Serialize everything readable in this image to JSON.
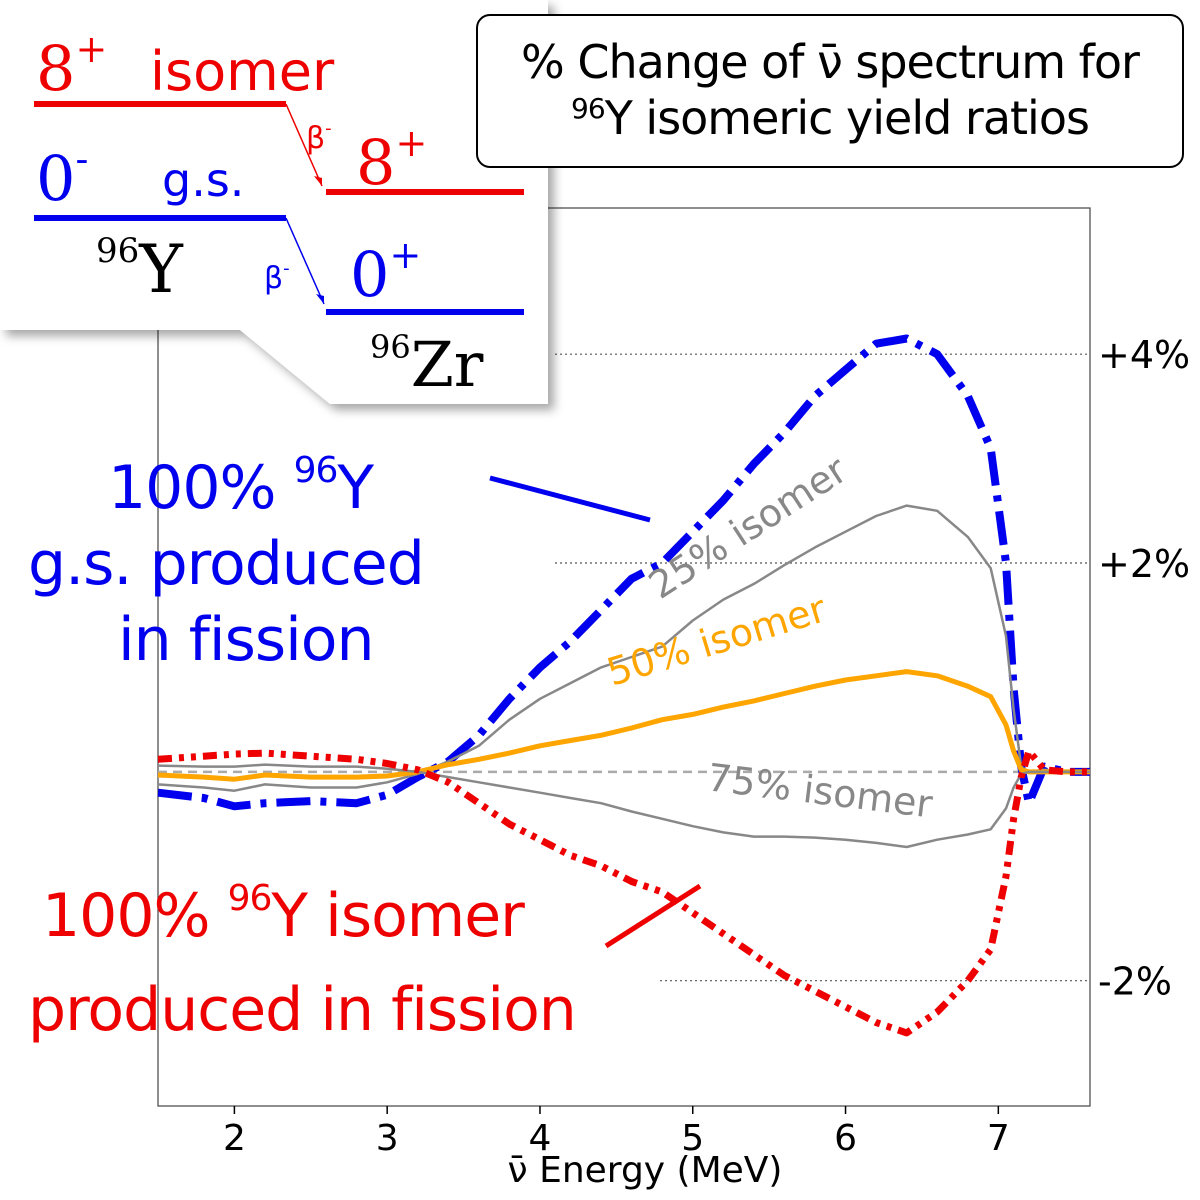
{
  "chart_data": {
    "type": "line",
    "title_line1": "% Change of ν̄ spectrum for",
    "title_line2_sup": "96",
    "title_line2": "Y isomeric yield ratios",
    "xlabel": "ν̄ Energy (MeV)",
    "xlim": [
      1.5,
      7.6
    ],
    "ylim": [
      -3.2,
      5.4
    ],
    "xticks": [
      "2",
      "3",
      "4",
      "5",
      "6",
      "7"
    ],
    "right_labels": [
      {
        "text": "+4%",
        "y": 4
      },
      {
        "text": "+2%",
        "y": 2
      },
      {
        "text": "-2%",
        "y": -2
      }
    ],
    "series": [
      {
        "name": "100% 96Y g.s. produced in fission",
        "color": "#0000ee",
        "style": "dashdot",
        "x": [
          1.5,
          1.8,
          2.0,
          2.2,
          2.5,
          2.8,
          3.0,
          3.2,
          3.4,
          3.6,
          3.8,
          4.0,
          4.2,
          4.4,
          4.6,
          4.8,
          5.0,
          5.2,
          5.4,
          5.6,
          5.8,
          6.0,
          6.2,
          6.4,
          6.6,
          6.8,
          6.95,
          7.05,
          7.1,
          7.15,
          7.2,
          7.3,
          7.45,
          7.6
        ],
        "y": [
          -0.2,
          -0.25,
          -0.33,
          -0.3,
          -0.28,
          -0.3,
          -0.22,
          -0.05,
          0.1,
          0.35,
          0.7,
          1.0,
          1.25,
          1.55,
          1.85,
          2.0,
          2.3,
          2.6,
          2.95,
          3.25,
          3.6,
          3.85,
          4.1,
          4.15,
          4.0,
          3.6,
          3.1,
          2.0,
          0.8,
          0.05,
          -0.3,
          0.05,
          0.0,
          0.0
        ]
      },
      {
        "name": "25% isomer",
        "color": "#888888",
        "style": "solid",
        "x": [
          1.5,
          1.8,
          2.0,
          2.2,
          2.5,
          2.8,
          3.0,
          3.2,
          3.4,
          3.6,
          3.8,
          4.0,
          4.2,
          4.4,
          4.6,
          4.8,
          5.0,
          5.2,
          5.4,
          5.6,
          5.8,
          6.0,
          6.2,
          6.4,
          6.6,
          6.8,
          6.95,
          7.05,
          7.1,
          7.15,
          7.2,
          7.3,
          7.45,
          7.6
        ],
        "y": [
          -0.12,
          -0.15,
          -0.18,
          -0.12,
          -0.15,
          -0.15,
          -0.1,
          -0.02,
          0.1,
          0.25,
          0.5,
          0.7,
          0.85,
          1.0,
          1.1,
          1.2,
          1.45,
          1.65,
          1.8,
          1.98,
          2.15,
          2.3,
          2.45,
          2.55,
          2.5,
          2.25,
          1.95,
          1.3,
          0.6,
          0.05,
          0.0,
          0.02,
          0.0,
          0.0
        ]
      },
      {
        "name": "50% isomer",
        "color": "#ffa500",
        "style": "solid",
        "x": [
          1.5,
          1.8,
          2.0,
          2.2,
          2.5,
          2.8,
          3.0,
          3.2,
          3.4,
          3.6,
          3.8,
          4.0,
          4.2,
          4.4,
          4.6,
          4.8,
          5.0,
          5.2,
          5.4,
          5.6,
          5.8,
          6.0,
          6.2,
          6.4,
          6.6,
          6.8,
          6.95,
          7.05,
          7.1,
          7.15,
          7.2,
          7.3,
          7.45,
          7.6
        ],
        "y": [
          -0.03,
          -0.05,
          -0.07,
          -0.03,
          -0.05,
          -0.05,
          -0.04,
          0.0,
          0.07,
          0.12,
          0.18,
          0.25,
          0.3,
          0.35,
          0.42,
          0.5,
          0.55,
          0.62,
          0.68,
          0.75,
          0.82,
          0.88,
          0.92,
          0.96,
          0.92,
          0.82,
          0.72,
          0.45,
          0.2,
          0.02,
          0.0,
          0.0,
          0.0,
          0.0
        ]
      },
      {
        "name": "75% isomer",
        "color": "#888888",
        "style": "solid",
        "x": [
          1.5,
          1.8,
          2.0,
          2.2,
          2.5,
          2.8,
          3.0,
          3.2,
          3.4,
          3.6,
          3.8,
          4.0,
          4.2,
          4.4,
          4.6,
          4.8,
          5.0,
          5.2,
          5.4,
          5.6,
          5.8,
          6.0,
          6.2,
          6.4,
          6.6,
          6.8,
          6.95,
          7.05,
          7.1,
          7.15,
          7.2,
          7.3,
          7.45,
          7.6
        ],
        "y": [
          0.06,
          0.05,
          0.05,
          0.07,
          0.05,
          0.05,
          0.03,
          0.0,
          -0.05,
          -0.1,
          -0.15,
          -0.2,
          -0.25,
          -0.3,
          -0.38,
          -0.45,
          -0.52,
          -0.58,
          -0.62,
          -0.62,
          -0.63,
          -0.65,
          -0.68,
          -0.72,
          -0.65,
          -0.6,
          -0.55,
          -0.35,
          -0.15,
          -0.02,
          0.0,
          0.0,
          0.0,
          0.0
        ]
      },
      {
        "name": "100% 96Y isomer produced in fission",
        "color": "#ee0000",
        "style": "dashdotdot",
        "x": [
          1.5,
          1.8,
          2.0,
          2.2,
          2.5,
          2.8,
          3.0,
          3.2,
          3.4,
          3.6,
          3.8,
          4.0,
          4.2,
          4.4,
          4.6,
          4.8,
          5.0,
          5.2,
          5.4,
          5.6,
          5.8,
          6.0,
          6.2,
          6.4,
          6.6,
          6.8,
          6.95,
          7.05,
          7.1,
          7.15,
          7.2,
          7.3,
          7.45,
          7.6
        ],
        "y": [
          0.12,
          0.15,
          0.17,
          0.18,
          0.15,
          0.12,
          0.08,
          0.02,
          -0.1,
          -0.3,
          -0.5,
          -0.65,
          -0.8,
          -0.9,
          -1.05,
          -1.15,
          -1.35,
          -1.55,
          -1.75,
          -1.95,
          -2.1,
          -2.25,
          -2.4,
          -2.5,
          -2.3,
          -2.0,
          -1.7,
          -1.0,
          -0.45,
          -0.05,
          0.2,
          0.02,
          0.0,
          0.0
        ]
      }
    ],
    "callouts": {
      "blue_line1": "100% ",
      "blue_sup": "96",
      "blue_line1b": "Y",
      "blue_line2": "g.s. produced",
      "blue_line3": "in fission",
      "red_line1": "100% ",
      "red_sup": "96",
      "red_line1b": "Y isomer",
      "red_line2": "produced in fission",
      "label_25": "25% isomer",
      "label_50": "50% isomer",
      "label_75": "75% isomer"
    },
    "level_diagram": {
      "isomer_spin": "8",
      "isomer_parity": "+",
      "isomer_word": "isomer",
      "gs_spin": "0",
      "gs_parity": "-",
      "gs_word": "g.s.",
      "parent_sup": "96",
      "parent": "Y",
      "daughter_hi_spin": "8",
      "daughter_hi_parity": "+",
      "daughter_lo_spin": "0",
      "daughter_lo_parity": "+",
      "daughter_sup": "96",
      "daughter": "Zr",
      "beta": "β",
      "beta_sup": "-"
    },
    "colors": {
      "gs": "#0000ee",
      "isomer": "#ee0000",
      "mid": "#ffa500",
      "gray": "#888888"
    }
  }
}
